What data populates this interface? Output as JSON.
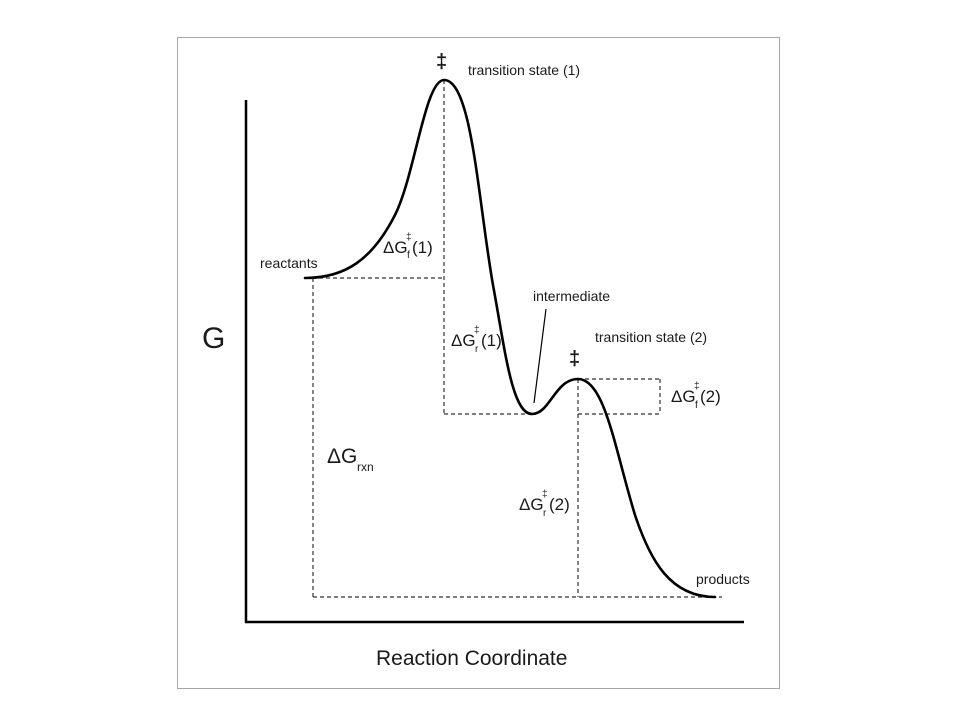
{
  "diagram": {
    "y_axis_label": "G",
    "x_axis_label": "Reaction Coordinate",
    "dagger_symbol": "‡",
    "states": {
      "ts1": "transition state (1)",
      "ts2": "transition state (2)",
      "reactants": "reactants",
      "intermediate": "intermediate",
      "products": "products"
    },
    "energies": {
      "delta": "Δ",
      "G": "G",
      "double_dagger": "‡",
      "forward_sub": "f",
      "reverse_sub": "r",
      "rxn_sub": "rxn",
      "step1": "(1)",
      "step2": "(2)"
    }
  }
}
